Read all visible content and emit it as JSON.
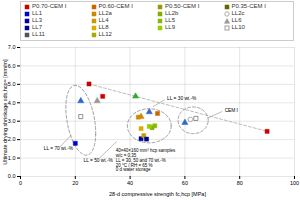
{
  "chart_data": {
    "type": "scatter",
    "x_label": "28-d compressive strength fc,hcp [MPa]",
    "y_label": "Ultimate drying shrinkage εds,hcp= [mm/m]",
    "xlim": [
      0,
      100
    ],
    "ylim": [
      0.0,
      7.0
    ],
    "xticks": [
      0,
      20,
      40,
      60,
      80,
      100
    ],
    "yticks": [
      0,
      1,
      2,
      3,
      4,
      5,
      6,
      7
    ],
    "grid": true,
    "legend": "top",
    "series": [
      {
        "name": "P0.70-CEM I",
        "marker": "square",
        "color": "#cc0000",
        "x": [
          25,
          30,
          90
        ],
        "values": [
          5.02,
          4.35,
          2.45
        ]
      },
      {
        "name": "P0.60-CEM I",
        "marker": "square",
        "color": "#cc6600",
        "x": [
          50
        ],
        "values": [
          3.42
        ]
      },
      {
        "name": "P0.50-CEM I",
        "marker": "square",
        "color": "#999900",
        "x": [],
        "values": []
      },
      {
        "name": "P0.35-CEM I",
        "marker": "square",
        "color": "#666600",
        "x": [],
        "values": []
      },
      {
        "name": "LL1",
        "marker": "square",
        "color": "#0000cc",
        "x": [
          20
        ],
        "values": [
          1.8
        ]
      },
      {
        "name": "LL2a",
        "marker": "square",
        "color": "#cc8800",
        "x": [
          43
        ],
        "values": [
          3.22
        ]
      },
      {
        "name": "LL2b",
        "marker": "square",
        "color": "#88aa00",
        "x": [
          48
        ],
        "values": [
          2.65
        ]
      },
      {
        "name": "LL2c",
        "marker": "circle-open",
        "color": "#999999",
        "x": [
          62
        ],
        "values": [
          3.1
        ]
      },
      {
        "name": "LL3",
        "marker": "square",
        "color": "#0000aa",
        "x": [
          44
        ],
        "values": [
          2.05
        ]
      },
      {
        "name": "LL4",
        "marker": "square",
        "color": "#cc9900",
        "x": [
          45
        ],
        "values": [
          2.22
        ]
      },
      {
        "name": "LL5",
        "marker": "square",
        "color": "#88bb00",
        "x": [
          49
        ],
        "values": [
          2.75
        ]
      },
      {
        "name": "LL6",
        "marker": "triangle",
        "color": "#999999",
        "x": [
          28
        ],
        "values": [
          4.1
        ]
      },
      {
        "name": "LL7",
        "marker": "square",
        "color": "#000088",
        "x": [
          46
        ],
        "values": [
          2.03
        ]
      },
      {
        "name": "LL8",
        "marker": "square",
        "color": "#ddaa00",
        "x": [
          44
        ],
        "values": [
          2.6
        ]
      },
      {
        "name": "LL9",
        "marker": "square",
        "color": "#99cc00",
        "x": [
          47
        ],
        "values": [
          2.72
        ]
      },
      {
        "name": "LL10",
        "marker": "square-open",
        "color": "#888888",
        "x": [],
        "values": []
      },
      {
        "name": "LL11",
        "marker": "square",
        "color": "#555555",
        "x": [],
        "values": []
      },
      {
        "name": "LL12",
        "marker": "square",
        "color": "#aaaa00",
        "x": [],
        "values": []
      },
      {
        "marker": "triangle",
        "color": "#3366cc",
        "x": [
          22,
          47,
          60
        ],
        "values": [
          4.1,
          3.5,
          2.92
        ]
      },
      {
        "marker": "triangle",
        "color": "#33aa33",
        "x": [
          42
        ],
        "values": [
          4.35
        ]
      },
      {
        "marker": "triangle",
        "color": "#cc8800",
        "x": [
          44
        ],
        "values": [
          3.25
        ]
      },
      {
        "marker": "square-open",
        "color": "#777777",
        "x": [
          22,
          64
        ],
        "values": [
          3.25,
          3.15
        ]
      },
      {
        "type": "line",
        "line_style": "dashed",
        "color": "#aaaaaa",
        "x": [
          25,
          90
        ],
        "values": [
          5.02,
          2.45
        ]
      },
      {
        "type": "line",
        "line_style": "solid",
        "color": "#aaaaaa",
        "x": [
          14.5,
          18.5
        ],
        "values": [
          1.62,
          2.25
        ]
      },
      {
        "type": "line",
        "line_style": "solid",
        "color": "#aaaaaa",
        "x": [
          29.0,
          35.0
        ],
        "values": [
          1.02,
          1.88
        ]
      },
      {
        "type": "line",
        "line_style": "solid",
        "color": "#aaaaaa",
        "x": [
          52.5,
          48.5
        ],
        "values": [
          4.15,
          3.8
        ]
      },
      {
        "type": "line",
        "line_style": "solid",
        "color": "#aaaaaa",
        "x": [
          73.5,
          68.5
        ],
        "values": [
          3.52,
          3.18
        ]
      }
    ],
    "ellipses": [
      {
        "x": 22,
        "y": 3.05,
        "width": 11,
        "height": 3.5,
        "angle": -8,
        "color": "#888888",
        "line_style": "dashed"
      },
      {
        "x": 47,
        "y": 2.75,
        "width": 16,
        "height": 1.85,
        "angle": 0,
        "color": "#888888",
        "line_style": "dashed"
      },
      {
        "x": 63,
        "y": 3.05,
        "width": 11,
        "height": 1.45,
        "angle": 0,
        "color": "#888888",
        "line_style": "dashed"
      }
    ],
    "annotations": [
      {
        "text": "LL = 30 wt.-%",
        "x": 53.5,
        "y": 4.22
      },
      {
        "text": "LL = 70 wt.-%",
        "x": 8.5,
        "y": 1.5
      },
      {
        "text": "LL = 50 wt.-%",
        "x": 23.0,
        "y": 0.88
      },
      {
        "text": "CEM I",
        "x": 74.5,
        "y": 3.6
      }
    ],
    "textbox": {
      "text": "40×40×160 mm³ hcp samples\nw/c = 0.35\nLL = 30, 50 and 70 wt.-%\n20 °C / RH = 65 %\n0 d water storage",
      "x": 34,
      "y": 1.62
    }
  }
}
